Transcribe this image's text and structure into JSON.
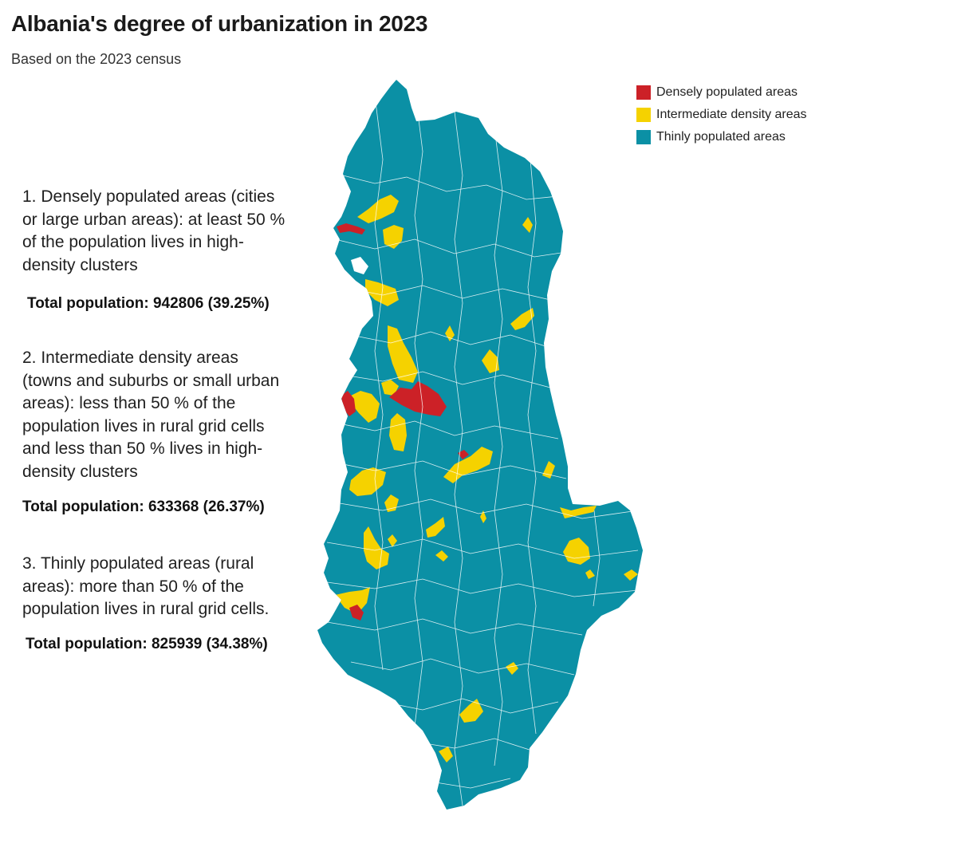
{
  "title": "Albania's degree of urbanization in 2023",
  "subtitle": "Based on the 2023 census",
  "colors": {
    "dense": "#cc2127",
    "intermediate": "#f5d200",
    "thin": "#0b90a5",
    "borders": "#ffffff"
  },
  "legend": [
    {
      "label": "Densely populated areas",
      "color": "#cc2127"
    },
    {
      "label": "Intermediate density areas",
      "color": "#f5d200"
    },
    {
      "label": "Thinly populated areas",
      "color": "#0b90a5"
    }
  ],
  "notes": [
    {
      "lines": [
        "1. Densely populated areas (cities",
        "or large urban areas): at least 50 %",
        "of the population lives in high-",
        "density clusters"
      ],
      "total": "Total population: 942806 (39.25%)"
    },
    {
      "lines": [
        "2. Intermediate density areas",
        "(towns and suburbs or small urban",
        "areas): less than 50 % of the",
        "population lives in rural grid cells",
        "and less than 50 % lives in high-",
        "density clusters"
      ],
      "total": "Total population: 633368 (26.37%)"
    },
    {
      "lines": [
        "3. Thinly populated areas (rural",
        "areas): more than 50 % of the",
        "population lives in rural grid cells."
      ],
      "total": "Total population: 825939 (34.38%)"
    }
  ]
}
